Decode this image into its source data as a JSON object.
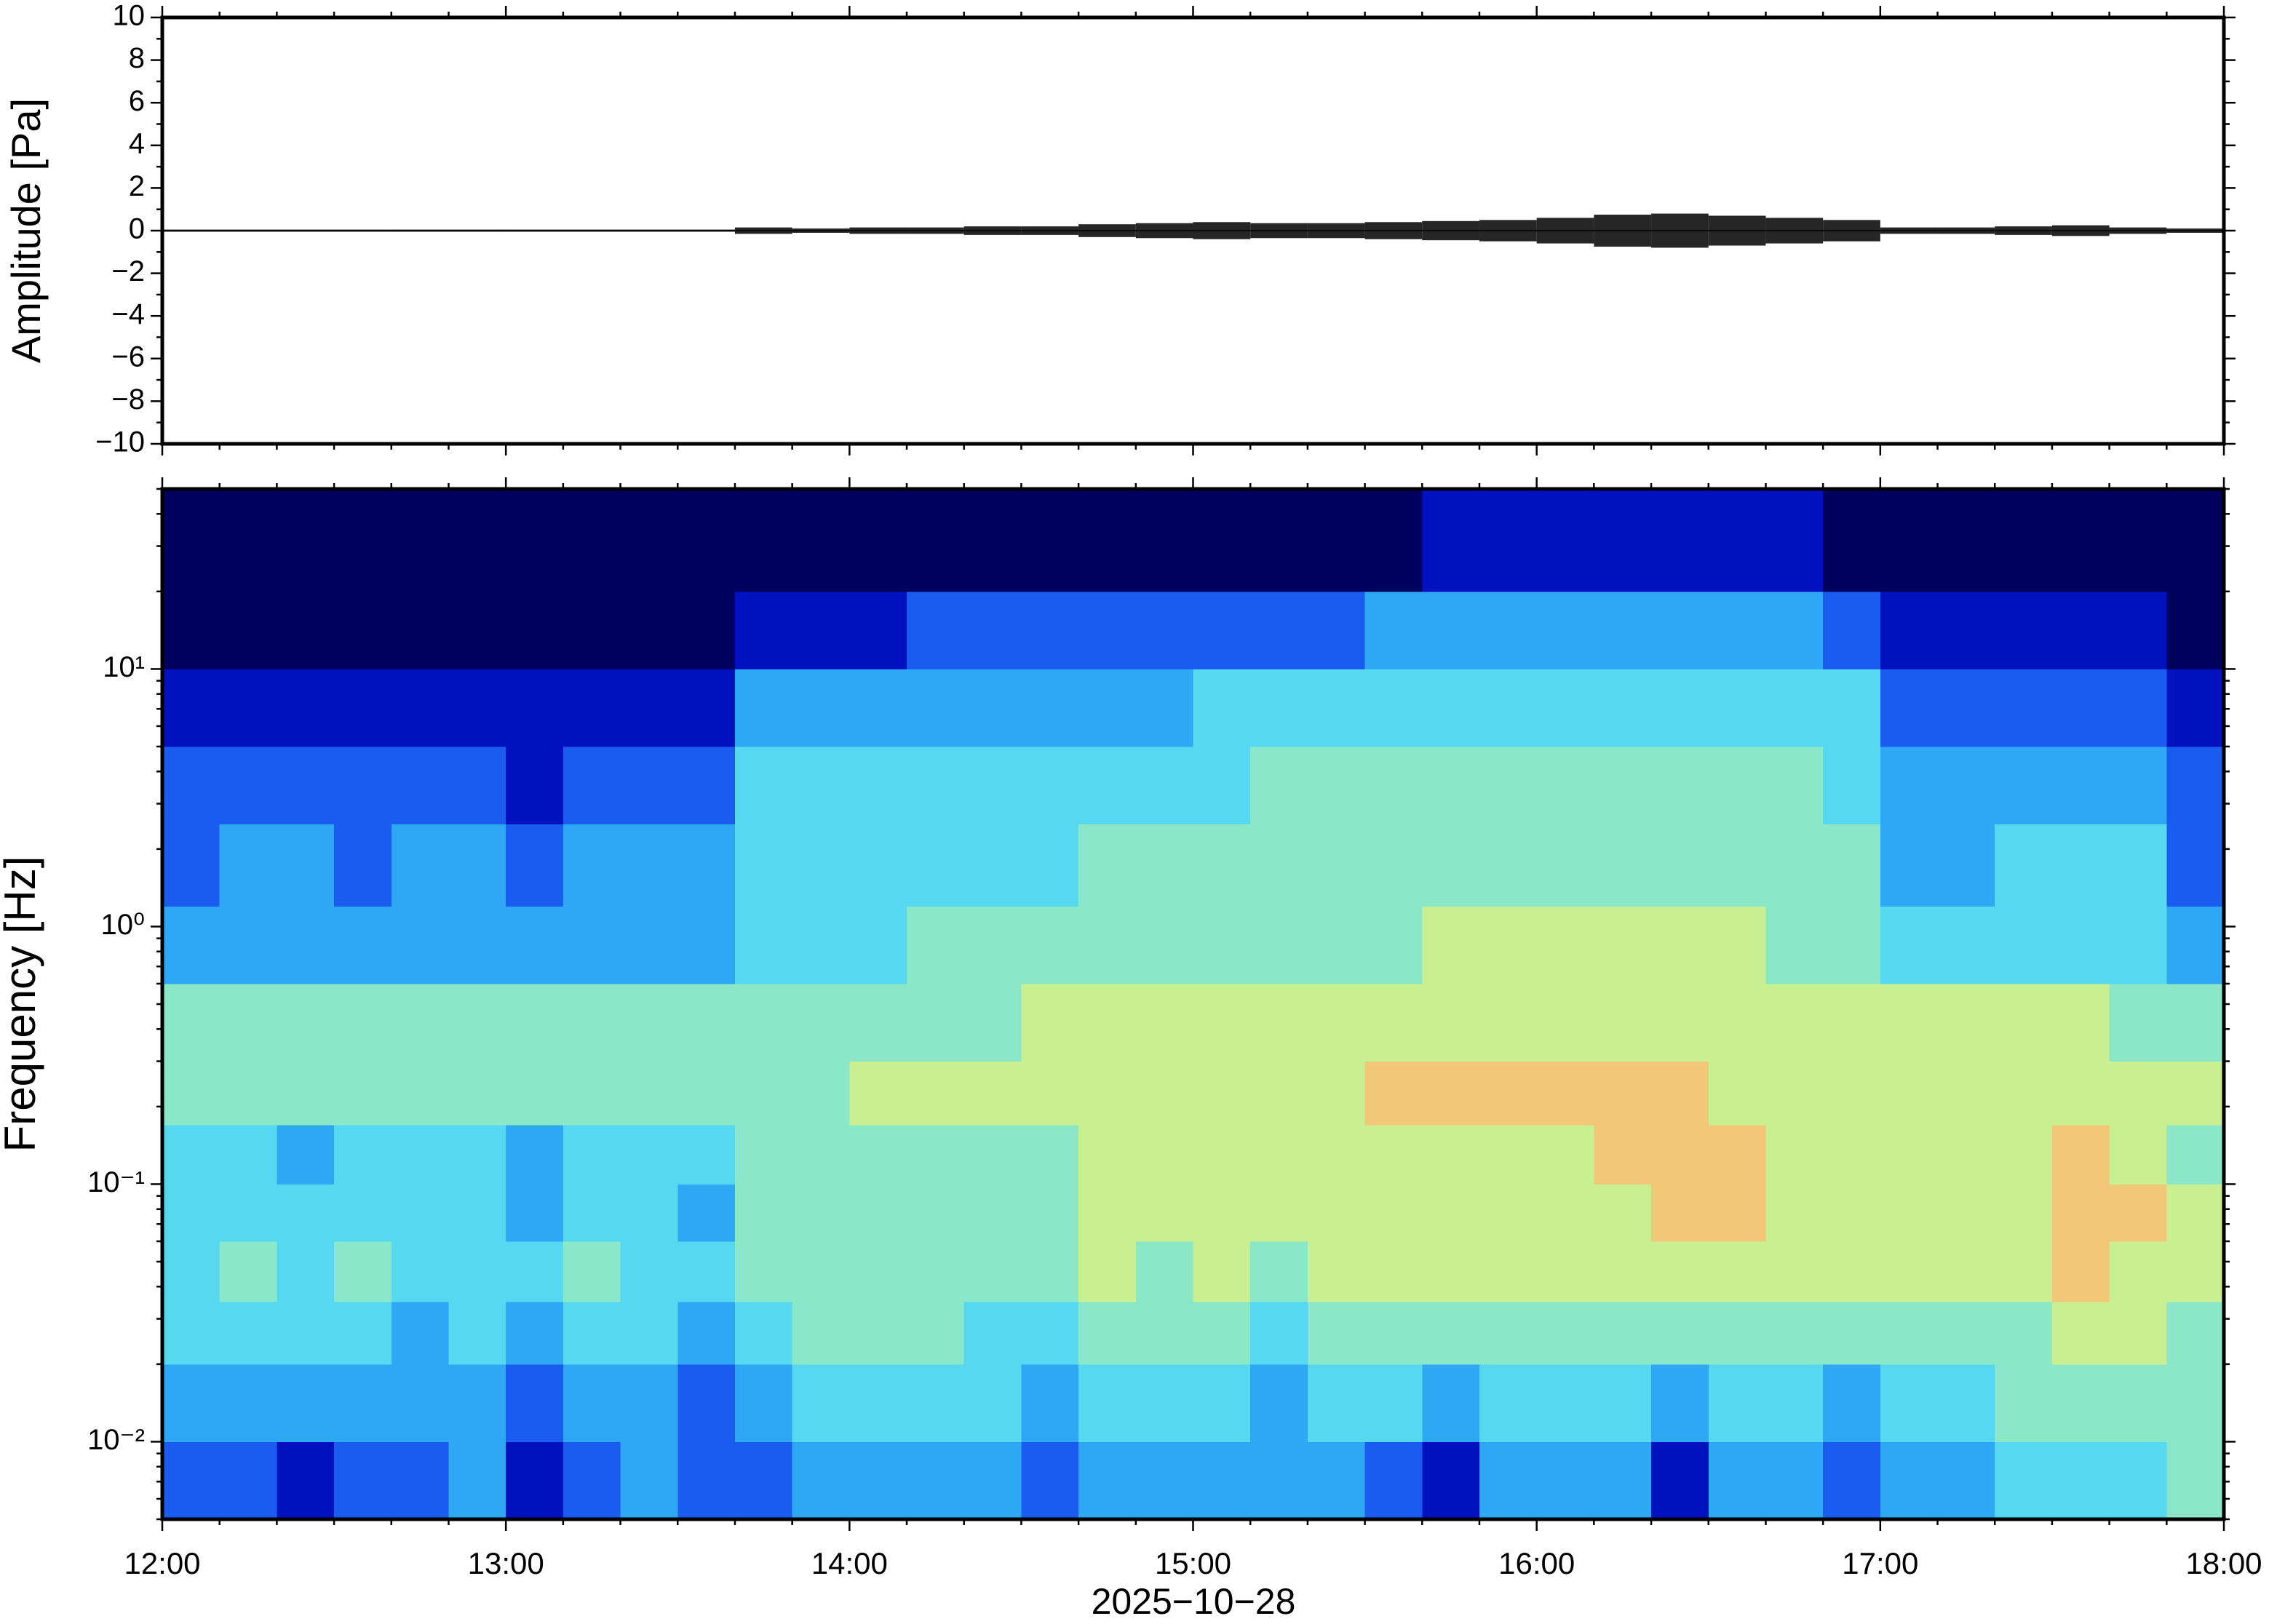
{
  "chart_data": [
    {
      "type": "waveform",
      "ylabel": "Amplitude [Pa]",
      "color": "#000000",
      "x": [
        5,
        15,
        25,
        35,
        45,
        55,
        65,
        75,
        85,
        95,
        105,
        115,
        125,
        135,
        145,
        155,
        165,
        175,
        185,
        195,
        205,
        215,
        225,
        235,
        245,
        255,
        265,
        275,
        285,
        295,
        305,
        315,
        325,
        335,
        345,
        355
      ],
      "values": [
        0.05,
        0.05,
        0.05,
        0.05,
        0.05,
        0.05,
        0.05,
        0.05,
        0.05,
        0.05,
        0.15,
        0.1,
        0.15,
        0.15,
        0.2,
        0.2,
        0.3,
        0.35,
        0.4,
        0.35,
        0.35,
        0.4,
        0.45,
        0.5,
        0.6,
        0.75,
        0.8,
        0.7,
        0.6,
        0.5,
        0.15,
        0.15,
        0.2,
        0.25,
        0.15,
        0.1
      ],
      "xlim": [
        0,
        360
      ],
      "ylim": [
        -10,
        10
      ],
      "yticks": [
        {
          "value": -10,
          "label": "−10"
        },
        {
          "value": -8,
          "label": "−8"
        },
        {
          "value": -6,
          "label": "−6"
        },
        {
          "value": -4,
          "label": "−4"
        },
        {
          "value": -2,
          "label": "−2"
        },
        0,
        2,
        4,
        6,
        8,
        10
      ]
    },
    {
      "type": "spectrogram",
      "ylabel": "Frequency [Hz]",
      "xlabel": "2025−10−28",
      "time_edges": [
        0,
        10,
        20,
        30,
        40,
        50,
        60,
        70,
        80,
        90,
        100,
        110,
        120,
        130,
        140,
        150,
        160,
        170,
        180,
        190,
        200,
        210,
        220,
        230,
        240,
        250,
        260,
        270,
        280,
        290,
        300,
        310,
        320,
        330,
        340,
        350,
        360
      ],
      "freq_edges": [
        0.005,
        0.01,
        0.02,
        0.035,
        0.06,
        0.1,
        0.17,
        0.3,
        0.6,
        1.2,
        2.5,
        5,
        10,
        20,
        50
      ],
      "colormap": [
        "#00005e",
        "#0012c0",
        "#1a5cf0",
        "#2ea8f5",
        "#55d8f0",
        "#8ae8c8",
        "#c8f090",
        "#f2c878"
      ],
      "z": [
        [
          2,
          2,
          1,
          2,
          2,
          3,
          1,
          2,
          3,
          2,
          2,
          3,
          3,
          3,
          3,
          2,
          3,
          3,
          3,
          3,
          3,
          2,
          1,
          3,
          3,
          3,
          1,
          3,
          3,
          2,
          3,
          3,
          4,
          4,
          4,
          5
        ],
        [
          3,
          3,
          3,
          3,
          3,
          3,
          2,
          3,
          3,
          2,
          3,
          4,
          4,
          4,
          4,
          3,
          4,
          4,
          4,
          3,
          4,
          4,
          3,
          4,
          4,
          4,
          3,
          4,
          4,
          3,
          4,
          4,
          5,
          5,
          5,
          5
        ],
        [
          4,
          4,
          4,
          4,
          3,
          4,
          3,
          4,
          4,
          3,
          4,
          5,
          5,
          5,
          4,
          4,
          5,
          5,
          5,
          4,
          5,
          5,
          5,
          5,
          5,
          5,
          5,
          5,
          5,
          5,
          5,
          5,
          5,
          6,
          6,
          5
        ],
        [
          4,
          5,
          4,
          5,
          4,
          4,
          4,
          5,
          4,
          4,
          5,
          5,
          5,
          5,
          5,
          5,
          6,
          5,
          6,
          5,
          6,
          6,
          6,
          6,
          6,
          6,
          6,
          6,
          6,
          6,
          6,
          6,
          6,
          7,
          6,
          6
        ],
        [
          4,
          4,
          4,
          4,
          4,
          4,
          3,
          4,
          4,
          3,
          5,
          5,
          5,
          5,
          5,
          5,
          6,
          6,
          6,
          6,
          6,
          6,
          6,
          6,
          6,
          6,
          7,
          7,
          6,
          6,
          6,
          6,
          6,
          7,
          7,
          6
        ],
        [
          4,
          4,
          3,
          4,
          4,
          4,
          3,
          4,
          4,
          4,
          5,
          5,
          5,
          5,
          5,
          5,
          6,
          6,
          6,
          6,
          6,
          6,
          6,
          6,
          6,
          7,
          7,
          7,
          6,
          6,
          6,
          6,
          6,
          7,
          6,
          5
        ],
        [
          5,
          5,
          5,
          5,
          5,
          5,
          5,
          5,
          5,
          5,
          5,
          5,
          6,
          6,
          6,
          6,
          6,
          6,
          6,
          6,
          6,
          7,
          7,
          7,
          7,
          7,
          7,
          6,
          6,
          6,
          6,
          6,
          6,
          6,
          6,
          6
        ],
        [
          5,
          5,
          5,
          5,
          5,
          5,
          5,
          5,
          5,
          5,
          5,
          5,
          5,
          5,
          5,
          6,
          6,
          6,
          6,
          6,
          6,
          6,
          6,
          6,
          6,
          6,
          6,
          6,
          6,
          6,
          6,
          6,
          6,
          6,
          5,
          5
        ],
        [
          3,
          3,
          3,
          3,
          3,
          3,
          3,
          3,
          3,
          3,
          4,
          4,
          4,
          5,
          5,
          5,
          5,
          5,
          5,
          5,
          5,
          5,
          6,
          6,
          6,
          6,
          6,
          6,
          5,
          5,
          4,
          4,
          4,
          4,
          4,
          3
        ],
        [
          2,
          3,
          3,
          2,
          3,
          3,
          2,
          3,
          3,
          3,
          4,
          4,
          4,
          4,
          4,
          4,
          5,
          5,
          5,
          5,
          5,
          5,
          5,
          5,
          5,
          5,
          5,
          5,
          5,
          5,
          3,
          3,
          4,
          4,
          4,
          2
        ],
        [
          2,
          2,
          2,
          2,
          2,
          2,
          1,
          2,
          2,
          2,
          4,
          4,
          4,
          4,
          4,
          4,
          4,
          4,
          4,
          5,
          5,
          5,
          5,
          5,
          5,
          5,
          5,
          5,
          5,
          4,
          3,
          3,
          3,
          3,
          3,
          2
        ],
        [
          1,
          1,
          1,
          1,
          1,
          1,
          1,
          1,
          1,
          1,
          3,
          3,
          3,
          3,
          3,
          3,
          3,
          3,
          4,
          4,
          4,
          4,
          4,
          4,
          4,
          4,
          4,
          4,
          4,
          4,
          2,
          2,
          2,
          2,
          2,
          1
        ],
        [
          0,
          0,
          0,
          0,
          0,
          0,
          0,
          0,
          0,
          0,
          1,
          1,
          1,
          2,
          2,
          2,
          2,
          2,
          2,
          2,
          2,
          3,
          3,
          3,
          3,
          3,
          3,
          3,
          3,
          2,
          1,
          1,
          1,
          1,
          1,
          0
        ],
        [
          0,
          0,
          0,
          0,
          0,
          0,
          0,
          0,
          0,
          0,
          0,
          0,
          0,
          0,
          0,
          0,
          0,
          0,
          0,
          0,
          0,
          0,
          1,
          1,
          1,
          1,
          1,
          1,
          1,
          0,
          0,
          0,
          0,
          0,
          0,
          0
        ]
      ],
      "xlim": [
        0,
        360
      ],
      "xticks": [
        {
          "value": 0,
          "label": "12:00"
        },
        {
          "value": 60,
          "label": "13:00"
        },
        {
          "value": 120,
          "label": "14:00"
        },
        {
          "value": 180,
          "label": "15:00"
        },
        {
          "value": 240,
          "label": "16:00"
        },
        {
          "value": 300,
          "label": "17:00"
        },
        {
          "value": 360,
          "label": "18:00"
        }
      ],
      "ylim": [
        0.005,
        50
      ],
      "yscale": "log",
      "yticks": [
        {
          "value": 0.01,
          "label": "10⁻²"
        },
        {
          "value": 0.1,
          "label": "10⁻¹"
        },
        {
          "value": 1,
          "label": "10⁰"
        },
        {
          "value": 10,
          "label": "10¹"
        }
      ]
    }
  ]
}
